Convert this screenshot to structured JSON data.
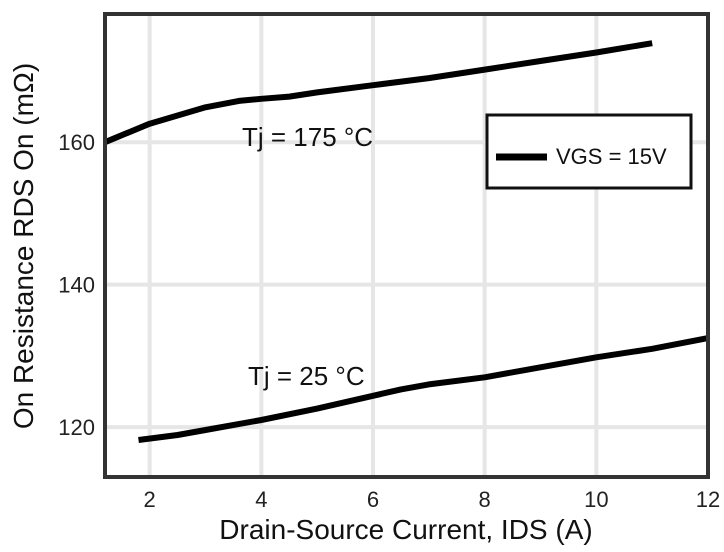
{
  "chart_data": {
    "type": "line",
    "xlabel": "Drain-Source Current, IDS (A)",
    "ylabel": "On Resistance RDS On (mΩ)",
    "xlim": [
      1.2,
      12
    ],
    "ylim": [
      113,
      178
    ],
    "x_ticks": [
      2,
      4,
      6,
      8,
      10,
      12
    ],
    "y_ticks": [
      120,
      140,
      160
    ],
    "grid": true,
    "legend": {
      "placement": "top-right",
      "entries": [
        "VGS = 15V"
      ]
    },
    "series": [
      {
        "annotation": "Tj = 175 °C",
        "color": "#000000",
        "x": [
          1.2,
          2.0,
          3.0,
          3.6,
          4.0,
          4.5,
          5.0,
          6.0,
          7.0,
          8.0,
          9.0,
          10.0,
          11.0
        ],
        "y": [
          160.0,
          162.6,
          164.9,
          165.8,
          166.1,
          166.4,
          167.0,
          168.0,
          169.0,
          170.2,
          171.4,
          172.6,
          173.9
        ]
      },
      {
        "annotation": "Tj = 25 °C",
        "color": "#000000",
        "x": [
          1.8,
          2.5,
          3.0,
          4.0,
          5.0,
          6.0,
          6.5,
          7.0,
          8.0,
          9.0,
          10.0,
          11.0,
          12.0
        ],
        "y": [
          118.2,
          118.9,
          119.6,
          121.0,
          122.6,
          124.4,
          125.3,
          126.0,
          127.0,
          128.4,
          129.8,
          131.0,
          132.5
        ]
      }
    ]
  }
}
